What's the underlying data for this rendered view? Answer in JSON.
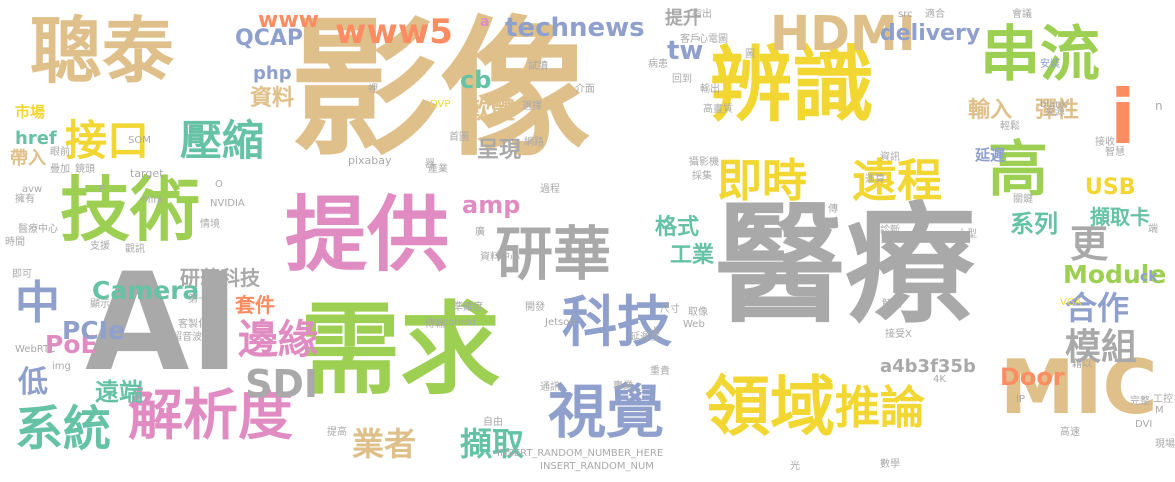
{
  "words": [
    {
      "text": "影像",
      "color": "#e0c08a"
    },
    {
      "text": "醫療",
      "color": "#a9a9a9"
    },
    {
      "text": "AI",
      "color": "#a9a9a9"
    },
    {
      "text": "需求",
      "color": "#9ccf52"
    },
    {
      "text": "辨識",
      "color": "#f2d632"
    },
    {
      "text": "聰泰",
      "color": "#e0c08a"
    },
    {
      "text": "提供",
      "color": "#e08cc2"
    },
    {
      "text": "技術",
      "color": "#9ccf52"
    },
    {
      "text": "串流",
      "color": "#9ccf52"
    },
    {
      "text": "領域",
      "color": "#f2d632"
    },
    {
      "text": "MIC",
      "color": "#e0c08a"
    },
    {
      "text": "研華",
      "color": "#a9a9a9"
    },
    {
      "text": "科技",
      "color": "#8fa0cc"
    },
    {
      "text": "解析度",
      "color": "#e08cc2"
    },
    {
      "text": "視覺",
      "color": "#8fa0cc"
    },
    {
      "text": "高",
      "color": "#9ccf52"
    },
    {
      "text": "遠程",
      "color": "#f2d632"
    },
    {
      "text": "即時",
      "color": "#f2d632"
    },
    {
      "text": "推論",
      "color": "#f2d632"
    },
    {
      "text": "系統",
      "color": "#66c2a5"
    },
    {
      "text": "HDMI",
      "color": "#e0c08a"
    },
    {
      "text": "壓縮",
      "color": "#66c2a5"
    },
    {
      "text": "接口",
      "color": "#f2d632"
    },
    {
      "text": "中",
      "color": "#8fa0cc"
    },
    {
      "text": "模組",
      "color": "#a9a9a9"
    },
    {
      "text": "邊緣",
      "color": "#e08cc2"
    },
    {
      "text": "www5",
      "color": "#fc8d62"
    },
    {
      "text": "technews",
      "color": "#8fa0cc"
    },
    {
      "text": "SDI",
      "color": "#a9a9a9"
    },
    {
      "text": "業者",
      "color": "#e0c08a"
    },
    {
      "text": "擷取",
      "color": "#66c2a5"
    },
    {
      "text": "合作",
      "color": "#8fa0cc"
    },
    {
      "text": "更",
      "color": "#a9a9a9"
    },
    {
      "text": "i",
      "color": "#fc8d62"
    },
    {
      "text": "低",
      "color": "#8fa0cc"
    },
    {
      "text": "www",
      "color": "#fc8d62"
    },
    {
      "text": "delivery",
      "color": "#8fa0cc"
    },
    {
      "text": "tw",
      "color": "#8fa0cc"
    },
    {
      "text": "工業",
      "color": "#66c2a5"
    },
    {
      "text": "Camera",
      "color": "#66c2a5"
    },
    {
      "text": "Module",
      "color": "#9ccf52"
    },
    {
      "text": "Door",
      "color": "#fc8d62"
    },
    {
      "text": "PoE",
      "color": "#e08cc2"
    },
    {
      "text": "PCIe",
      "color": "#8fa0cc"
    },
    {
      "text": "USB",
      "color": "#f2d632"
    },
    {
      "text": "系列",
      "color": "#66c2a5"
    },
    {
      "text": "擷取卡",
      "color": "#66c2a5"
    },
    {
      "text": "套件",
      "color": "#fc8d62"
    },
    {
      "text": "遠端",
      "color": "#66c2a5"
    },
    {
      "text": "格式",
      "color": "#66c2a5"
    },
    {
      "text": "amp",
      "color": "#e08cc2"
    },
    {
      "text": "呈現",
      "color": "#a9a9a9"
    },
    {
      "text": "軟體",
      "color": "#e0c08a"
    },
    {
      "text": "cb",
      "color": "#66c2a5"
    },
    {
      "text": "QCAP",
      "color": "#8fa0cc"
    },
    {
      "text": "php",
      "color": "#8fa0cc"
    },
    {
      "text": "資料",
      "color": "#e0c08a"
    },
    {
      "text": "輸入",
      "color": "#e0c08a"
    },
    {
      "text": "彈性",
      "color": "#e0c08a"
    },
    {
      "text": "延遲",
      "color": "#8fa0cc"
    },
    {
      "text": "帶入",
      "color": "#e0c08a"
    },
    {
      "text": "市場",
      "color": "#f2d632"
    },
    {
      "text": "href",
      "color": "#66c2a5"
    },
    {
      "text": "提升",
      "color": "#a9a9a9"
    },
    {
      "text": "研華科技",
      "color": "#a9a9a9"
    },
    {
      "text": "a4b3f35b",
      "color": "#a9a9a9"
    },
    {
      "text": "ck",
      "color": "#8fa0cc"
    },
    {
      "text": "n",
      "color": "#a9a9a9"
    },
    {
      "text": "SOM",
      "color": "#a9a9a9"
    },
    {
      "text": "pixabay",
      "color": "#a9a9a9"
    },
    {
      "text": "target",
      "color": "#a9a9a9"
    },
    {
      "text": "a",
      "color": "#e08cc2"
    },
    {
      "text": "指出",
      "color": "#a9a9a9"
    },
    {
      "text": "src",
      "color": "#a9a9a9"
    },
    {
      "text": "適合",
      "color": "#a9a9a9"
    },
    {
      "text": "會議",
      "color": "#a9a9a9"
    },
    {
      "text": "安裝",
      "color": "#8fa0cc"
    },
    {
      "text": "心電圖",
      "color": "#a9a9a9"
    },
    {
      "text": "試讀",
      "color": "#a9a9a9"
    },
    {
      "text": "客戶",
      "color": "#a9a9a9"
    },
    {
      "text": "病患",
      "color": "#a9a9a9"
    },
    {
      "text": "回到",
      "color": "#a9a9a9"
    },
    {
      "text": "介面",
      "color": "#a9a9a9"
    },
    {
      "text": "選擇",
      "color": "#a9a9a9"
    },
    {
      "text": "輸出",
      "color": "#a9a9a9"
    },
    {
      "text": "高畫質",
      "color": "#a9a9a9"
    },
    {
      "text": "DVP",
      "color": "#f2d632"
    },
    {
      "text": "首圖",
      "color": "#a9a9a9"
    },
    {
      "text": "網路",
      "color": "#a9a9a9"
    },
    {
      "text": "攝影機",
      "color": "#a9a9a9"
    },
    {
      "text": "採集",
      "color": "#a9a9a9"
    },
    {
      "text": "過程",
      "color": "#a9a9a9"
    },
    {
      "text": "資訊",
      "color": "#a9a9a9"
    },
    {
      "text": "blank",
      "color": "#a9a9a9"
    },
    {
      "text": "來源",
      "color": "#a9a9a9"
    },
    {
      "text": "輕鬆",
      "color": "#a9a9a9"
    },
    {
      "text": "接收",
      "color": "#a9a9a9"
    },
    {
      "text": "智慧",
      "color": "#a9a9a9"
    },
    {
      "text": "運算",
      "color": "#a9a9a9"
    },
    {
      "text": "產業",
      "color": "#a9a9a9"
    },
    {
      "text": "疊加",
      "color": "#a9a9a9"
    },
    {
      "text": "眼前",
      "color": "#a9a9a9"
    },
    {
      "text": "鏡頭",
      "color": "#a9a9a9"
    },
    {
      "text": "avw",
      "color": "#a9a9a9"
    },
    {
      "text": "P",
      "color": "#a9a9a9"
    },
    {
      "text": "Mini",
      "color": "#a9a9a9"
    },
    {
      "text": "NVIDIA",
      "color": "#a9a9a9"
    },
    {
      "text": "情境",
      "color": "#a9a9a9"
    },
    {
      "text": "擁有",
      "color": "#a9a9a9"
    },
    {
      "text": "醫療中心",
      "color": "#a9a9a9"
    },
    {
      "text": "時間",
      "color": "#a9a9a9"
    },
    {
      "text": "支援",
      "color": "#a9a9a9"
    },
    {
      "text": "觀訊",
      "color": "#a9a9a9"
    },
    {
      "text": "資料中心",
      "color": "#a9a9a9"
    },
    {
      "text": "診斷",
      "color": "#a9a9a9"
    },
    {
      "text": "大型",
      "color": "#a9a9a9"
    },
    {
      "text": "關鍵",
      "color": "#a9a9a9"
    },
    {
      "text": "端",
      "color": "#a9a9a9"
    },
    {
      "text": "即可",
      "color": "#a9a9a9"
    },
    {
      "text": "顯示",
      "color": "#a9a9a9"
    },
    {
      "text": "第一",
      "color": "#a9a9a9"
    },
    {
      "text": "準確度",
      "color": "#a9a9a9"
    },
    {
      "text": "開發",
      "color": "#a9a9a9"
    },
    {
      "text": "尺寸",
      "color": "#a9a9a9"
    },
    {
      "text": "取像",
      "color": "#a9a9a9"
    },
    {
      "text": "VGA",
      "color": "#f2d632"
    },
    {
      "text": "解碼",
      "color": "#a9a9a9"
    },
    {
      "text": "延遲性",
      "color": "#a9a9a9"
    },
    {
      "text": "卡",
      "color": "#a9a9a9"
    },
    {
      "text": "Web",
      "color": "#a9a9a9"
    },
    {
      "text": "傳輸",
      "color": "#a9a9a9"
    },
    {
      "text": "zoneid",
      "color": "#a9a9a9"
    },
    {
      "text": "Jetson",
      "color": "#a9a9a9"
    },
    {
      "text": "接受X",
      "color": "#a9a9a9"
    },
    {
      "text": "客製化",
      "color": "#a9a9a9"
    },
    {
      "text": "超音波",
      "color": "#a9a9a9"
    },
    {
      "text": "WebRTC",
      "color": "#a9a9a9"
    },
    {
      "text": "img",
      "color": "#a9a9a9"
    },
    {
      "text": "通訊",
      "color": "#a9a9a9"
    },
    {
      "text": "重貴",
      "color": "#a9a9a9"
    },
    {
      "text": "專業",
      "color": "#a9a9a9"
    },
    {
      "text": "藉以",
      "color": "#a9a9a9"
    },
    {
      "text": "4K",
      "color": "#a9a9a9"
    },
    {
      "text": "工控",
      "color": "#a9a9a9"
    },
    {
      "text": "IP",
      "color": "#a9a9a9"
    },
    {
      "text": "M",
      "color": "#a9a9a9"
    },
    {
      "text": "現場",
      "color": "#a9a9a9"
    },
    {
      "text": "高速",
      "color": "#a9a9a9"
    },
    {
      "text": "完整",
      "color": "#a9a9a9"
    },
    {
      "text": "提高",
      "color": "#a9a9a9"
    },
    {
      "text": "自由",
      "color": "#a9a9a9"
    },
    {
      "text": "INSERT_RANDOM_NUMBER_HERE",
      "color": "#a9a9a9"
    },
    {
      "text": "INSERT_RANDOM_NUM",
      "color": "#a9a9a9"
    },
    {
      "text": "數學",
      "color": "#a9a9a9"
    },
    {
      "text": "光",
      "color": "#a9a9a9"
    },
    {
      "text": "傳",
      "color": "#a9a9a9"
    },
    {
      "text": "裡",
      "color": "#a9a9a9"
    },
    {
      "text": "器",
      "color": "#a9a9a9"
    },
    {
      "text": "O",
      "color": "#a9a9a9"
    },
    {
      "text": "DVI",
      "color": "#a9a9a9"
    },
    {
      "text": "廣",
      "color": "#a9a9a9"
    },
    {
      "text": "圖",
      "color": "#a9a9a9"
    }
  ]
}
